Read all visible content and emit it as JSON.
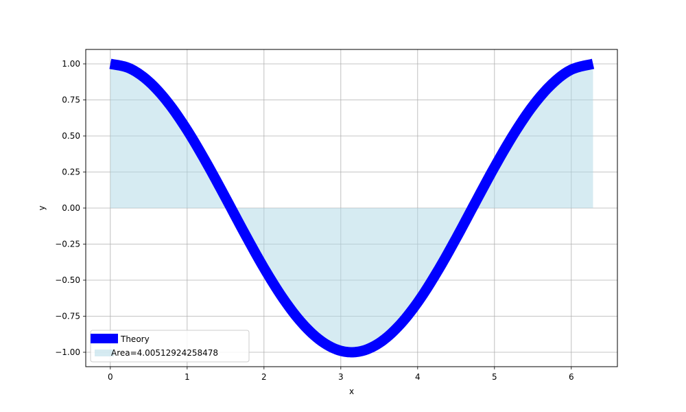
{
  "chart_data": {
    "type": "line",
    "title": "",
    "xlabel": "x",
    "ylabel": "y",
    "xlim": [
      -0.32,
      6.6
    ],
    "ylim": [
      -1.1,
      1.1
    ],
    "x_ticks": [
      0,
      1,
      2,
      3,
      4,
      5,
      6
    ],
    "y_ticks": [
      1.0,
      0.75,
      0.5,
      0.25,
      0.0,
      -0.25,
      -0.5,
      -0.75,
      -1.0
    ],
    "x_tick_labels": [
      "0",
      "1",
      "2",
      "3",
      "4",
      "5",
      "6"
    ],
    "y_tick_labels": [
      "1.00",
      "0.75",
      "0.50",
      "0.25",
      "0.00",
      "−0.25",
      "−0.50",
      "−0.75",
      "−1.00"
    ],
    "grid": true,
    "legend_position": "lower-left",
    "series": [
      {
        "name": "Theory",
        "type": "line",
        "color": "#0000ff",
        "x": [
          0,
          0.25,
          0.5,
          0.75,
          1.0,
          1.25,
          1.5,
          1.75,
          2.0,
          2.25,
          2.5,
          2.75,
          3.0,
          3.25,
          3.5,
          3.75,
          4.0,
          4.25,
          4.5,
          4.75,
          5.0,
          5.25,
          5.5,
          5.75,
          6.0,
          6.283
        ],
        "y": [
          1.0,
          0.969,
          0.878,
          0.732,
          0.54,
          0.315,
          0.071,
          -0.178,
          -0.416,
          -0.628,
          -0.801,
          -0.924,
          -0.99,
          -0.994,
          -0.936,
          -0.82,
          -0.654,
          -0.446,
          -0.211,
          0.038,
          0.284,
          0.512,
          0.709,
          0.861,
          0.96,
          1.0
        ]
      },
      {
        "name": "Area=4.00512924258478",
        "type": "area",
        "color": "#add8e6",
        "baseline": 0,
        "x": [
          0,
          0.25,
          0.5,
          0.75,
          1.0,
          1.25,
          1.5,
          1.75,
          2.0,
          2.25,
          2.5,
          2.75,
          3.0,
          3.25,
          3.5,
          3.75,
          4.0,
          4.25,
          4.5,
          4.75,
          5.0,
          5.25,
          5.5,
          5.75,
          6.0,
          6.283
        ],
        "y": [
          1.0,
          0.969,
          0.878,
          0.732,
          0.54,
          0.315,
          0.071,
          -0.178,
          -0.416,
          -0.628,
          -0.801,
          -0.924,
          -0.99,
          -0.994,
          -0.936,
          -0.82,
          -0.654,
          -0.446,
          -0.211,
          0.038,
          0.284,
          0.512,
          0.709,
          0.861,
          0.96,
          1.0
        ]
      }
    ]
  }
}
